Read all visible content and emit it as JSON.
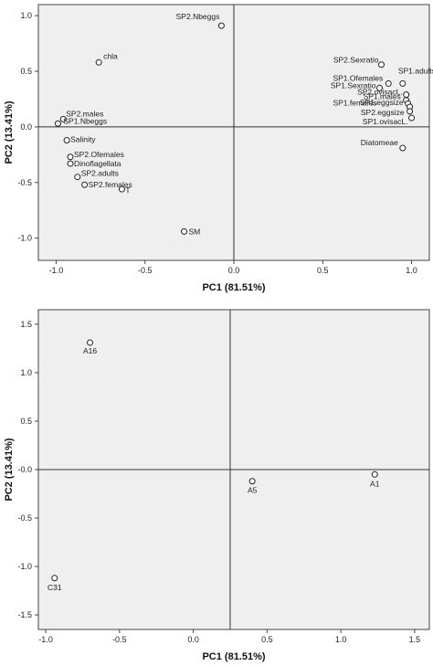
{
  "chart_data": [
    {
      "type": "scatter",
      "title": "",
      "xlabel": "PC1 (81.51%)",
      "ylabel": "PC2 (13.41%)",
      "xlim": [
        -1.1,
        1.1
      ],
      "ylim": [
        -1.2,
        1.1
      ],
      "xticks": [
        -1.0,
        -0.5,
        0.0,
        0.5,
        1.0
      ],
      "yticks": [
        -1.0,
        -0.5,
        0.0,
        0.5,
        1.0
      ],
      "xtick_labels": [
        "-1.0",
        "-0.5",
        "0.0",
        "0.5",
        "1.0"
      ],
      "ytick_labels": [
        "-1.0",
        "-0.5",
        "0.0",
        "0.5",
        "1.0"
      ],
      "ref_x": 0.0,
      "ref_y": 0.0,
      "grid": false,
      "points": [
        {
          "label": "SP2.Nbeggs",
          "x": -0.07,
          "y": 0.91
        },
        {
          "label": "chla",
          "x": -0.76,
          "y": 0.58
        },
        {
          "label": "SP2.males",
          "x": -0.96,
          "y": 0.07
        },
        {
          "label": "SP1.Nbeggs",
          "x": -0.99,
          "y": 0.03
        },
        {
          "label": "Salinity",
          "x": -0.94,
          "y": -0.12
        },
        {
          "label": "SP2.Ofemales",
          "x": -0.92,
          "y": -0.27
        },
        {
          "label": "Dinoflagellata",
          "x": -0.92,
          "y": -0.33
        },
        {
          "label": "SP2.adults",
          "x": -0.88,
          "y": -0.45
        },
        {
          "label": "SP2.females",
          "x": -0.84,
          "y": -0.52
        },
        {
          "label": "T",
          "x": -0.63,
          "y": -0.56
        },
        {
          "label": "SM",
          "x": -0.28,
          "y": -0.94
        },
        {
          "label": "SP2.Sexratio",
          "x": 0.83,
          "y": 0.56
        },
        {
          "label": "SP1.adults",
          "x": 0.95,
          "y": 0.39
        },
        {
          "label": "SP1.Ofemales",
          "x": 0.87,
          "y": 0.39
        },
        {
          "label": "SP1.Sexratio",
          "x": 0.82,
          "y": 0.35
        },
        {
          "label": "SP2.ovisacL.",
          "x": 0.97,
          "y": 0.29
        },
        {
          "label": "SP1.males",
          "x": 0.97,
          "y": 0.24
        },
        {
          "label": "SP1.females",
          "x": 0.98,
          "y": 0.21
        },
        {
          "label": "SP1.eggsize",
          "x": 0.99,
          "y": 0.18
        },
        {
          "label": "SP2.eggsize",
          "x": 0.99,
          "y": 0.14
        },
        {
          "label": "SP1.ovisacL.",
          "x": 1.0,
          "y": 0.08
        },
        {
          "label": "Diatomeae",
          "x": 0.95,
          "y": -0.19
        }
      ]
    },
    {
      "type": "scatter",
      "title": "",
      "xlabel": "PC1 (81.51%)",
      "ylabel": "PC2 (13.41%)",
      "xlim": [
        -1.05,
        1.6
      ],
      "ylim": [
        -1.65,
        1.65
      ],
      "xticks": [
        -1.0,
        -0.5,
        0.0,
        0.5,
        1.0,
        1.5
      ],
      "yticks": [
        -1.5,
        -1.0,
        -0.5,
        0.0,
        0.5,
        1.0,
        1.5
      ],
      "xtick_labels": [
        "-1.0",
        "-0.5",
        "0.0",
        "0.5",
        "1.0",
        "1.5"
      ],
      "ytick_labels": [
        "-1.5",
        "-1.0",
        "-0.5",
        "-0.0",
        "0.5",
        "1.0",
        "1.5"
      ],
      "ref_x": 0.25,
      "ref_y": 0.0,
      "grid": false,
      "points": [
        {
          "label": "A16",
          "x": -0.7,
          "y": 1.31
        },
        {
          "label": "A5",
          "x": 0.4,
          "y": -0.12
        },
        {
          "label": "A1",
          "x": 1.23,
          "y": -0.05
        },
        {
          "label": "C31",
          "x": -0.94,
          "y": -1.12
        }
      ]
    }
  ]
}
